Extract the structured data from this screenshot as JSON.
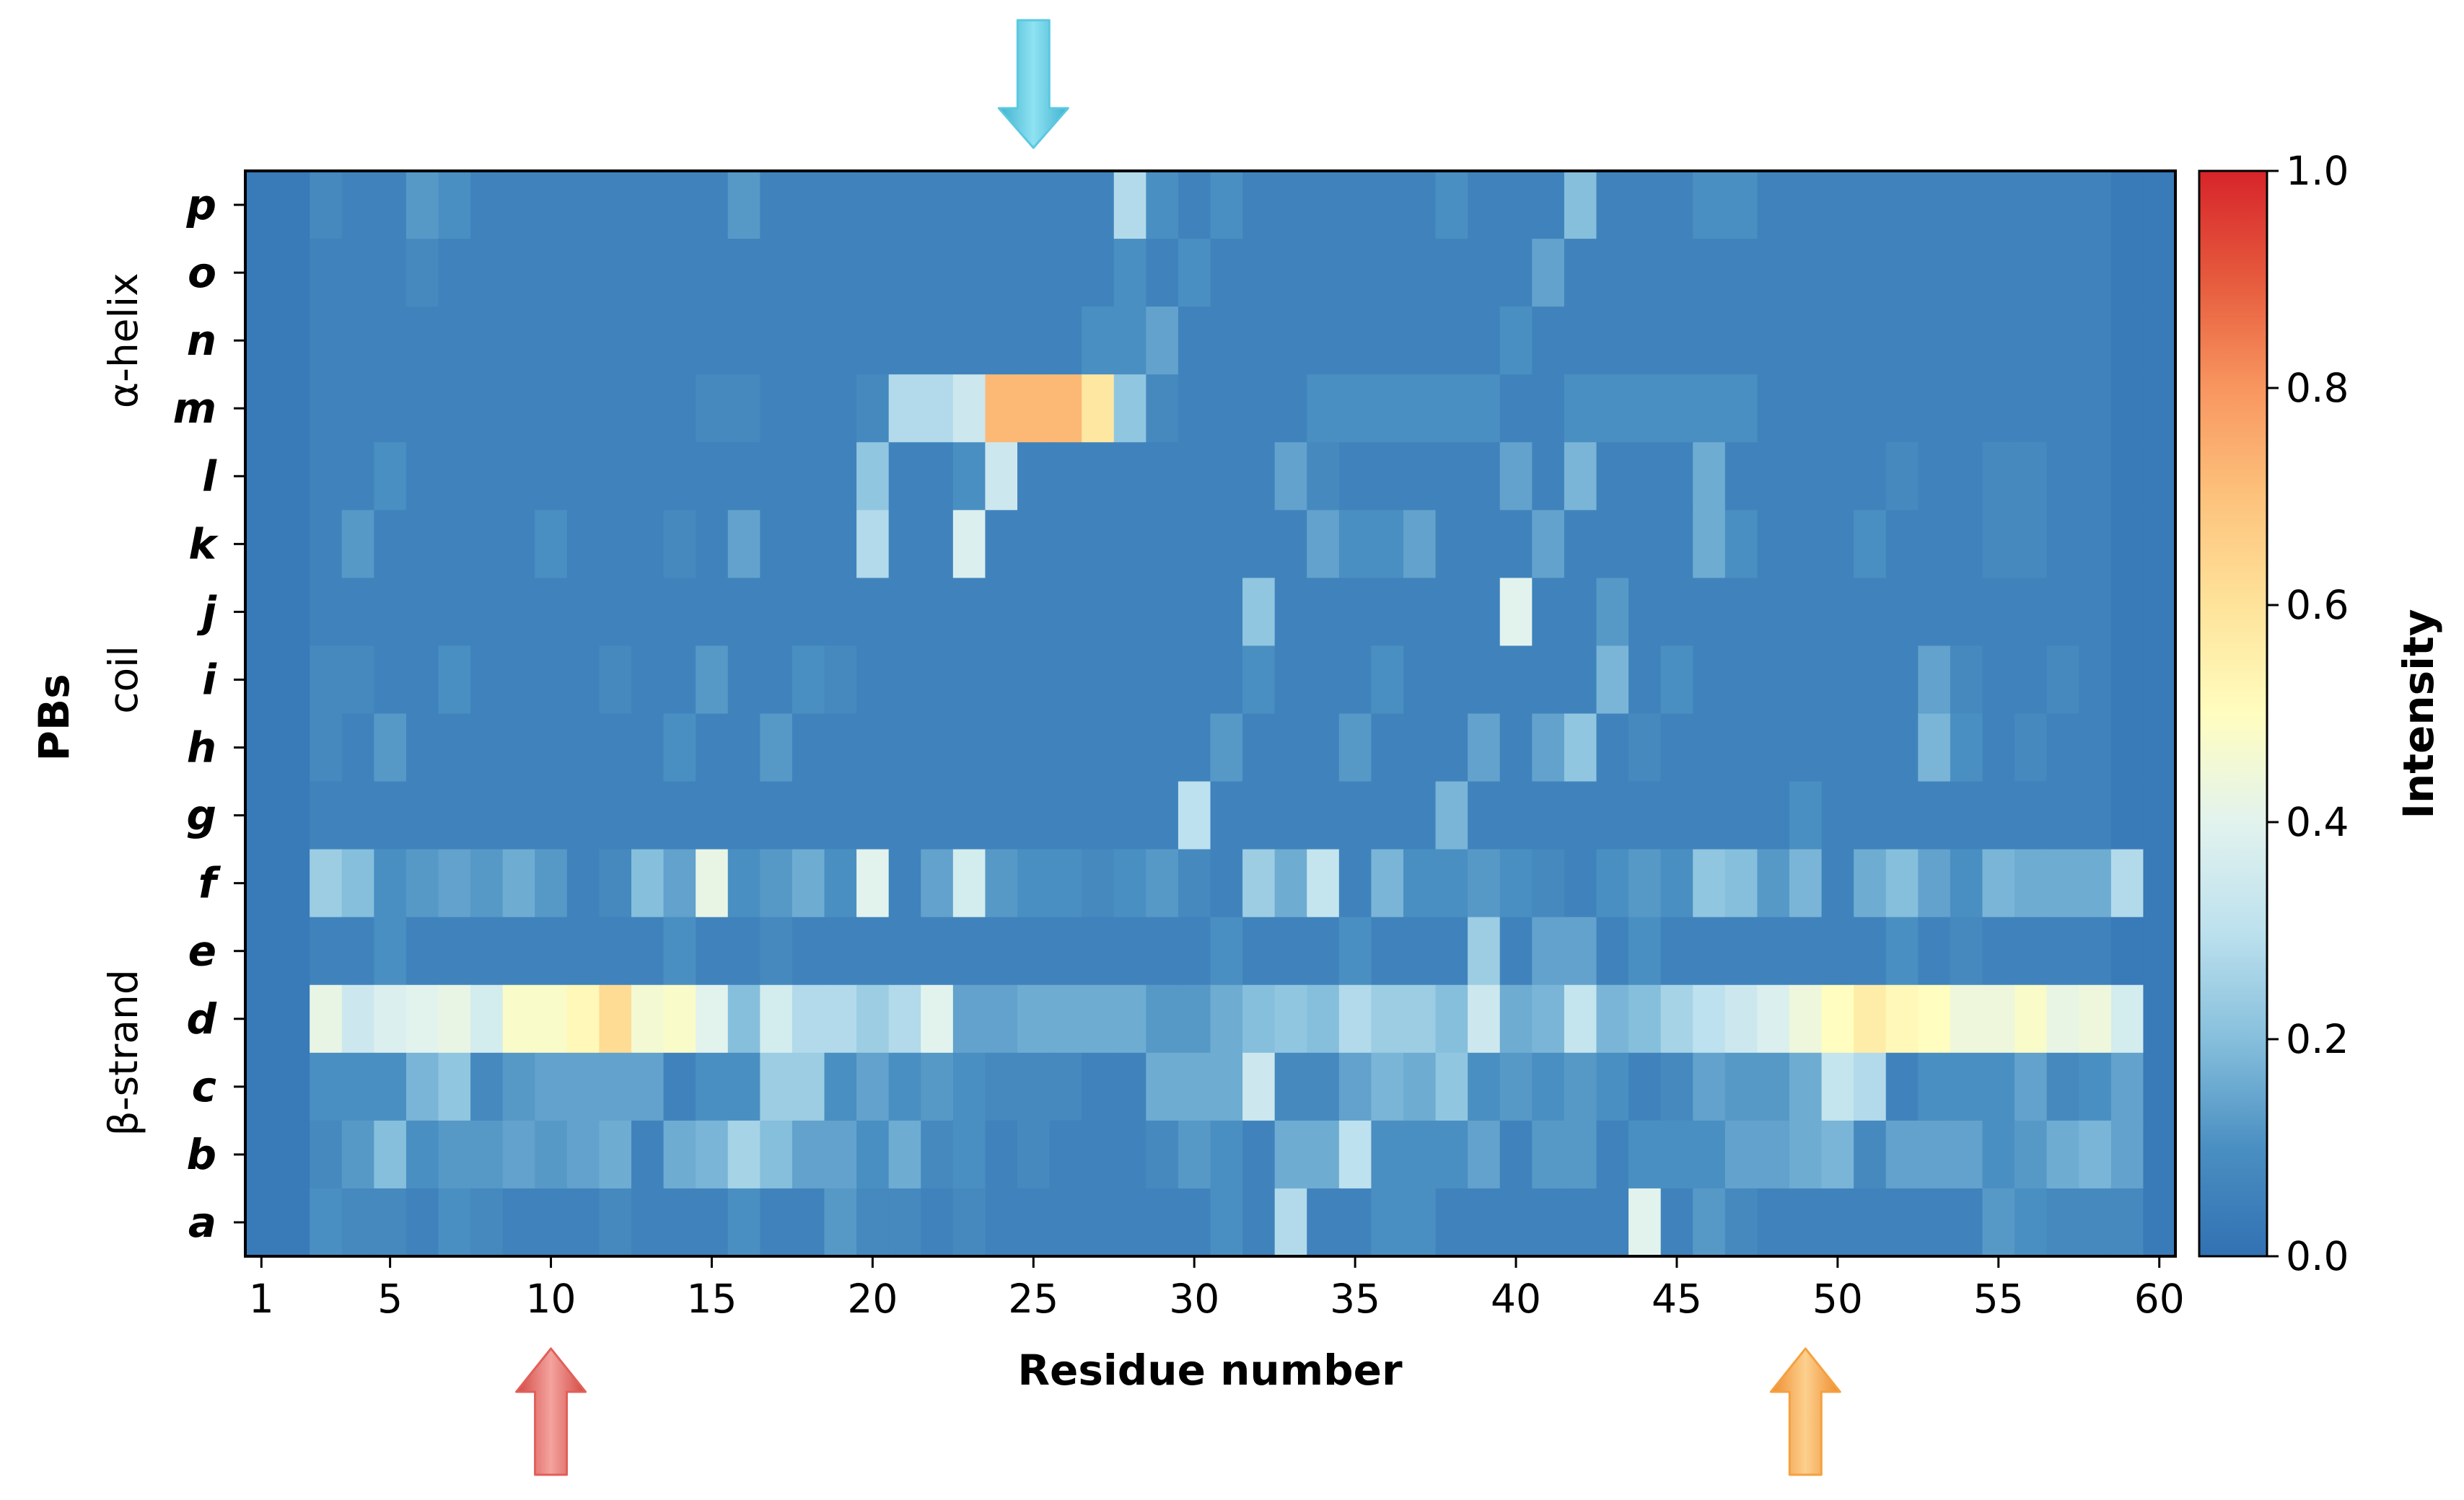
{
  "chart_data": {
    "type": "heatmap",
    "title": "",
    "xlabel": "Residue number",
    "ylabel": "PBs",
    "colorbar_label": "Intensity",
    "colorscale": "RdYlBu_r",
    "x_range": [
      1,
      60
    ],
    "x_ticks": [
      1,
      5,
      10,
      15,
      20,
      25,
      30,
      35,
      40,
      45,
      50,
      55,
      60
    ],
    "x_tick_labels": [
      "1",
      "5",
      "10",
      "15",
      "20",
      "25",
      "30",
      "35",
      "40",
      "45",
      "50",
      "55",
      "60"
    ],
    "rows": [
      "p",
      "o",
      "n",
      "m",
      "l",
      "k",
      "j",
      "i",
      "h",
      "g",
      "f",
      "e",
      "d",
      "c",
      "b",
      "a"
    ],
    "row_groups": [
      {
        "label": "α-helix",
        "rows": [
          "p",
          "o",
          "n",
          "m",
          "l"
        ]
      },
      {
        "label": "coil",
        "rows": [
          "k",
          "j",
          "i",
          "h",
          "g"
        ]
      },
      {
        "label": "β-strand",
        "rows": [
          "f",
          "e",
          "d",
          "c",
          "b",
          "a"
        ]
      }
    ],
    "colorbar": {
      "min": 0.0,
      "max": 1.0,
      "ticks": [
        0.0,
        0.2,
        0.4,
        0.6,
        0.8,
        1.0
      ],
      "tick_labels": [
        "0.0",
        "0.2",
        "0.4",
        "0.6",
        "0.8",
        "1.0"
      ]
    },
    "arrows": [
      {
        "residue": 25,
        "side": "top",
        "direction": "down",
        "color": "#5bc8e0"
      },
      {
        "residue": 10,
        "side": "bottom",
        "direction": "up",
        "color": "#e0605a"
      },
      {
        "residue": 49,
        "side": "bottom",
        "direction": "up",
        "color": "#f5a040"
      }
    ],
    "matrix": [
      [
        0.03,
        0.03,
        0.08,
        0.06,
        0.06,
        0.12,
        0.1,
        0.06,
        0.06,
        0.06,
        0.06,
        0.06,
        0.06,
        0.06,
        0.06,
        0.12,
        0.06,
        0.06,
        0.06,
        0.06,
        0.06,
        0.06,
        0.06,
        0.06,
        0.06,
        0.06,
        0.06,
        0.28,
        0.1,
        0.06,
        0.1,
        0.06,
        0.06,
        0.06,
        0.06,
        0.06,
        0.06,
        0.1,
        0.06,
        0.06,
        0.06,
        0.2,
        0.06,
        0.06,
        0.06,
        0.1,
        0.1,
        0.06,
        0.06,
        0.06,
        0.06,
        0.06,
        0.06,
        0.06,
        0.06,
        0.06,
        0.06,
        0.06,
        0.03,
        0.03
      ],
      [
        0.03,
        0.03,
        0.06,
        0.06,
        0.06,
        0.08,
        0.06,
        0.06,
        0.06,
        0.06,
        0.06,
        0.06,
        0.06,
        0.06,
        0.06,
        0.06,
        0.06,
        0.06,
        0.06,
        0.06,
        0.06,
        0.06,
        0.06,
        0.06,
        0.06,
        0.06,
        0.06,
        0.1,
        0.06,
        0.1,
        0.06,
        0.06,
        0.06,
        0.06,
        0.06,
        0.06,
        0.06,
        0.06,
        0.06,
        0.06,
        0.14,
        0.06,
        0.06,
        0.06,
        0.06,
        0.06,
        0.06,
        0.06,
        0.06,
        0.06,
        0.06,
        0.06,
        0.06,
        0.06,
        0.06,
        0.06,
        0.06,
        0.06,
        0.03,
        0.03
      ],
      [
        0.03,
        0.03,
        0.06,
        0.06,
        0.06,
        0.06,
        0.06,
        0.06,
        0.06,
        0.06,
        0.06,
        0.06,
        0.06,
        0.06,
        0.06,
        0.06,
        0.06,
        0.06,
        0.06,
        0.06,
        0.06,
        0.06,
        0.06,
        0.06,
        0.06,
        0.06,
        0.1,
        0.1,
        0.14,
        0.06,
        0.06,
        0.06,
        0.06,
        0.06,
        0.06,
        0.06,
        0.06,
        0.06,
        0.06,
        0.1,
        0.06,
        0.06,
        0.06,
        0.06,
        0.06,
        0.06,
        0.06,
        0.06,
        0.06,
        0.06,
        0.06,
        0.06,
        0.06,
        0.06,
        0.06,
        0.06,
        0.06,
        0.06,
        0.03,
        0.03
      ],
      [
        0.03,
        0.03,
        0.06,
        0.06,
        0.06,
        0.06,
        0.06,
        0.06,
        0.06,
        0.06,
        0.06,
        0.06,
        0.06,
        0.06,
        0.08,
        0.08,
        0.06,
        0.06,
        0.06,
        0.08,
        0.28,
        0.28,
        0.34,
        0.72,
        0.72,
        0.72,
        0.58,
        0.22,
        0.08,
        0.06,
        0.06,
        0.06,
        0.06,
        0.1,
        0.1,
        0.1,
        0.1,
        0.1,
        0.1,
        0.06,
        0.06,
        0.1,
        0.1,
        0.1,
        0.1,
        0.1,
        0.1,
        0.06,
        0.06,
        0.06,
        0.06,
        0.06,
        0.06,
        0.06,
        0.06,
        0.06,
        0.06,
        0.06,
        0.03,
        0.03
      ],
      [
        0.03,
        0.03,
        0.06,
        0.06,
        0.1,
        0.06,
        0.06,
        0.06,
        0.06,
        0.06,
        0.06,
        0.06,
        0.06,
        0.06,
        0.06,
        0.06,
        0.06,
        0.06,
        0.06,
        0.22,
        0.06,
        0.06,
        0.1,
        0.34,
        0.06,
        0.06,
        0.06,
        0.06,
        0.06,
        0.06,
        0.06,
        0.06,
        0.14,
        0.08,
        0.06,
        0.06,
        0.06,
        0.06,
        0.06,
        0.14,
        0.06,
        0.18,
        0.06,
        0.06,
        0.06,
        0.16,
        0.06,
        0.06,
        0.06,
        0.06,
        0.06,
        0.08,
        0.06,
        0.06,
        0.08,
        0.08,
        0.06,
        0.06,
        0.03,
        0.03
      ],
      [
        0.03,
        0.03,
        0.06,
        0.12,
        0.06,
        0.06,
        0.06,
        0.06,
        0.06,
        0.1,
        0.06,
        0.06,
        0.06,
        0.08,
        0.06,
        0.14,
        0.06,
        0.06,
        0.06,
        0.28,
        0.06,
        0.06,
        0.38,
        0.06,
        0.06,
        0.06,
        0.06,
        0.06,
        0.06,
        0.06,
        0.06,
        0.06,
        0.06,
        0.14,
        0.1,
        0.1,
        0.14,
        0.06,
        0.06,
        0.06,
        0.14,
        0.06,
        0.06,
        0.06,
        0.06,
        0.16,
        0.1,
        0.06,
        0.06,
        0.06,
        0.1,
        0.06,
        0.06,
        0.06,
        0.08,
        0.08,
        0.06,
        0.06,
        0.03,
        0.03
      ],
      [
        0.03,
        0.03,
        0.06,
        0.06,
        0.06,
        0.06,
        0.06,
        0.06,
        0.06,
        0.06,
        0.06,
        0.06,
        0.06,
        0.06,
        0.06,
        0.06,
        0.06,
        0.06,
        0.06,
        0.06,
        0.06,
        0.06,
        0.06,
        0.06,
        0.06,
        0.06,
        0.06,
        0.06,
        0.06,
        0.06,
        0.06,
        0.22,
        0.06,
        0.06,
        0.06,
        0.06,
        0.06,
        0.06,
        0.06,
        0.4,
        0.06,
        0.06,
        0.12,
        0.06,
        0.06,
        0.06,
        0.06,
        0.06,
        0.06,
        0.06,
        0.06,
        0.06,
        0.06,
        0.06,
        0.06,
        0.06,
        0.06,
        0.06,
        0.03,
        0.03
      ],
      [
        0.03,
        0.03,
        0.08,
        0.08,
        0.06,
        0.06,
        0.1,
        0.06,
        0.06,
        0.06,
        0.06,
        0.08,
        0.06,
        0.06,
        0.12,
        0.06,
        0.06,
        0.1,
        0.08,
        0.06,
        0.06,
        0.06,
        0.06,
        0.06,
        0.06,
        0.06,
        0.06,
        0.06,
        0.06,
        0.06,
        0.06,
        0.1,
        0.06,
        0.06,
        0.06,
        0.1,
        0.06,
        0.06,
        0.06,
        0.06,
        0.06,
        0.06,
        0.18,
        0.06,
        0.1,
        0.06,
        0.06,
        0.06,
        0.06,
        0.06,
        0.06,
        0.06,
        0.14,
        0.08,
        0.06,
        0.06,
        0.08,
        0.06,
        0.03,
        0.03
      ],
      [
        0.03,
        0.03,
        0.08,
        0.06,
        0.12,
        0.06,
        0.06,
        0.06,
        0.06,
        0.06,
        0.06,
        0.06,
        0.06,
        0.1,
        0.06,
        0.06,
        0.12,
        0.06,
        0.06,
        0.06,
        0.06,
        0.06,
        0.06,
        0.06,
        0.06,
        0.06,
        0.06,
        0.06,
        0.06,
        0.06,
        0.12,
        0.06,
        0.06,
        0.06,
        0.12,
        0.06,
        0.06,
        0.06,
        0.14,
        0.06,
        0.14,
        0.22,
        0.06,
        0.08,
        0.06,
        0.06,
        0.06,
        0.06,
        0.06,
        0.06,
        0.06,
        0.06,
        0.18,
        0.1,
        0.06,
        0.08,
        0.06,
        0.06,
        0.03,
        0.03
      ],
      [
        0.03,
        0.03,
        0.06,
        0.06,
        0.06,
        0.06,
        0.06,
        0.06,
        0.06,
        0.06,
        0.06,
        0.06,
        0.06,
        0.06,
        0.06,
        0.06,
        0.06,
        0.06,
        0.06,
        0.06,
        0.06,
        0.06,
        0.06,
        0.06,
        0.06,
        0.06,
        0.06,
        0.06,
        0.06,
        0.3,
        0.06,
        0.06,
        0.06,
        0.06,
        0.06,
        0.06,
        0.06,
        0.18,
        0.06,
        0.06,
        0.06,
        0.06,
        0.06,
        0.06,
        0.06,
        0.06,
        0.06,
        0.06,
        0.1,
        0.06,
        0.06,
        0.06,
        0.06,
        0.06,
        0.06,
        0.06,
        0.06,
        0.06,
        0.03,
        0.03
      ],
      [
        0.03,
        0.03,
        0.24,
        0.2,
        0.1,
        0.12,
        0.14,
        0.12,
        0.16,
        0.12,
        0.06,
        0.08,
        0.2,
        0.14,
        0.42,
        0.1,
        0.12,
        0.16,
        0.1,
        0.4,
        0.06,
        0.14,
        0.36,
        0.12,
        0.1,
        0.1,
        0.08,
        0.1,
        0.12,
        0.08,
        0.06,
        0.24,
        0.16,
        0.32,
        0.06,
        0.18,
        0.1,
        0.1,
        0.12,
        0.1,
        0.08,
        0.06,
        0.1,
        0.12,
        0.1,
        0.22,
        0.2,
        0.12,
        0.18,
        0.06,
        0.16,
        0.2,
        0.14,
        0.1,
        0.18,
        0.16,
        0.16,
        0.16,
        0.28,
        0.03
      ],
      [
        0.03,
        0.03,
        0.06,
        0.06,
        0.1,
        0.06,
        0.06,
        0.06,
        0.06,
        0.06,
        0.06,
        0.06,
        0.06,
        0.1,
        0.06,
        0.06,
        0.08,
        0.06,
        0.06,
        0.06,
        0.06,
        0.06,
        0.06,
        0.06,
        0.06,
        0.06,
        0.06,
        0.06,
        0.06,
        0.06,
        0.1,
        0.06,
        0.06,
        0.06,
        0.1,
        0.06,
        0.06,
        0.06,
        0.24,
        0.06,
        0.14,
        0.14,
        0.06,
        0.1,
        0.06,
        0.06,
        0.06,
        0.06,
        0.06,
        0.06,
        0.06,
        0.1,
        0.06,
        0.08,
        0.06,
        0.06,
        0.06,
        0.06,
        0.03,
        0.03
      ],
      [
        0.03,
        0.03,
        0.42,
        0.34,
        0.38,
        0.4,
        0.42,
        0.36,
        0.48,
        0.48,
        0.52,
        0.62,
        0.46,
        0.48,
        0.4,
        0.2,
        0.36,
        0.28,
        0.28,
        0.24,
        0.28,
        0.4,
        0.14,
        0.14,
        0.16,
        0.16,
        0.16,
        0.16,
        0.12,
        0.12,
        0.16,
        0.2,
        0.22,
        0.2,
        0.28,
        0.24,
        0.24,
        0.2,
        0.34,
        0.16,
        0.18,
        0.32,
        0.18,
        0.2,
        0.26,
        0.3,
        0.34,
        0.38,
        0.44,
        0.5,
        0.56,
        0.52,
        0.5,
        0.44,
        0.44,
        0.48,
        0.42,
        0.44,
        0.36,
        0.03
      ],
      [
        0.03,
        0.03,
        0.1,
        0.1,
        0.1,
        0.18,
        0.22,
        0.08,
        0.12,
        0.14,
        0.14,
        0.14,
        0.14,
        0.06,
        0.1,
        0.1,
        0.24,
        0.24,
        0.1,
        0.14,
        0.1,
        0.12,
        0.1,
        0.08,
        0.08,
        0.08,
        0.06,
        0.06,
        0.16,
        0.16,
        0.16,
        0.34,
        0.08,
        0.08,
        0.14,
        0.18,
        0.16,
        0.22,
        0.1,
        0.12,
        0.1,
        0.12,
        0.1,
        0.06,
        0.08,
        0.14,
        0.12,
        0.12,
        0.16,
        0.32,
        0.28,
        0.06,
        0.1,
        0.1,
        0.1,
        0.14,
        0.08,
        0.1,
        0.14,
        0.03
      ],
      [
        0.03,
        0.03,
        0.08,
        0.12,
        0.2,
        0.1,
        0.12,
        0.12,
        0.14,
        0.12,
        0.14,
        0.16,
        0.06,
        0.16,
        0.18,
        0.26,
        0.2,
        0.14,
        0.14,
        0.1,
        0.16,
        0.08,
        0.1,
        0.06,
        0.08,
        0.06,
        0.06,
        0.06,
        0.08,
        0.12,
        0.1,
        0.06,
        0.16,
        0.16,
        0.3,
        0.1,
        0.1,
        0.1,
        0.14,
        0.06,
        0.12,
        0.12,
        0.06,
        0.1,
        0.1,
        0.1,
        0.14,
        0.14,
        0.16,
        0.18,
        0.08,
        0.14,
        0.14,
        0.14,
        0.1,
        0.12,
        0.16,
        0.18,
        0.14,
        0.03
      ],
      [
        0.03,
        0.03,
        0.1,
        0.08,
        0.08,
        0.06,
        0.1,
        0.08,
        0.06,
        0.06,
        0.06,
        0.08,
        0.06,
        0.06,
        0.06,
        0.1,
        0.06,
        0.06,
        0.12,
        0.08,
        0.08,
        0.06,
        0.08,
        0.06,
        0.06,
        0.06,
        0.06,
        0.06,
        0.06,
        0.06,
        0.1,
        0.06,
        0.28,
        0.06,
        0.06,
        0.1,
        0.1,
        0.06,
        0.06,
        0.06,
        0.06,
        0.06,
        0.06,
        0.4,
        0.06,
        0.12,
        0.08,
        0.06,
        0.06,
        0.06,
        0.06,
        0.06,
        0.06,
        0.06,
        0.12,
        0.1,
        0.08,
        0.08,
        0.08,
        0.03
      ]
    ]
  }
}
